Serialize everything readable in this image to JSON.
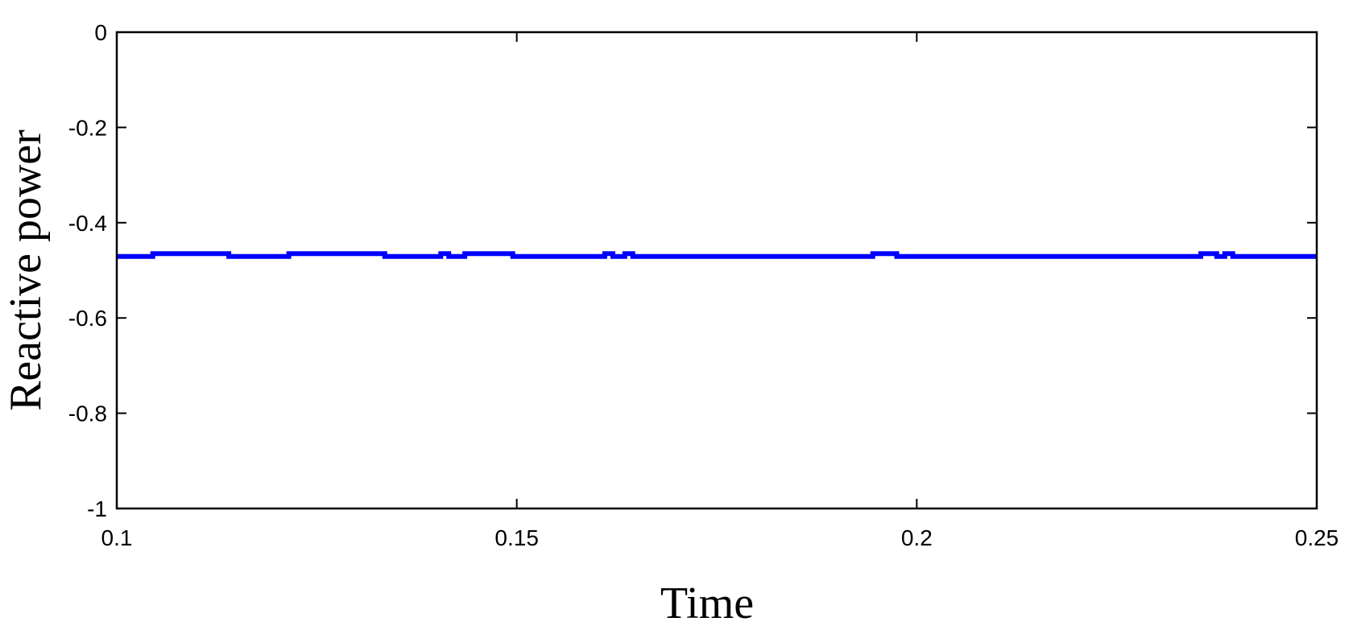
{
  "chart_data": {
    "type": "line",
    "title": "",
    "xlabel": "Time",
    "ylabel": "Reactive power",
    "xlim": [
      0.1,
      0.25
    ],
    "ylim": [
      -1,
      0
    ],
    "xticks": [
      0.1,
      0.15,
      0.2,
      0.25
    ],
    "xtick_labels": [
      "0.1",
      "0.15",
      "0.2",
      "0.25"
    ],
    "yticks": [
      0,
      -0.2,
      -0.4,
      -0.6,
      -0.8,
      -1
    ],
    "ytick_labels": [
      "0",
      "-0.2",
      "-0.4",
      "-0.6",
      "-0.8",
      "-1"
    ],
    "grid": false,
    "line_color": "#0000ff",
    "series": [
      {
        "x": [
          0.1,
          0.1045,
          0.1045,
          0.114,
          0.114,
          0.1215,
          0.1215,
          0.1335,
          0.1335,
          0.1405,
          0.1405,
          0.1415,
          0.1415,
          0.1435,
          0.1435,
          0.1495,
          0.1495,
          0.161,
          0.161,
          0.162,
          0.162,
          0.1635,
          0.1635,
          0.1645,
          0.1645,
          0.1945,
          0.1945,
          0.1975,
          0.1975,
          0.2355,
          0.2355,
          0.2375,
          0.2375,
          0.2385,
          0.2385,
          0.2395,
          0.2395,
          0.25
        ],
        "values": [
          -0.471,
          -0.471,
          -0.465,
          -0.465,
          -0.471,
          -0.471,
          -0.465,
          -0.465,
          -0.471,
          -0.471,
          -0.465,
          -0.465,
          -0.471,
          -0.471,
          -0.465,
          -0.465,
          -0.471,
          -0.471,
          -0.465,
          -0.465,
          -0.471,
          -0.471,
          -0.465,
          -0.465,
          -0.471,
          -0.471,
          -0.465,
          -0.465,
          -0.471,
          -0.471,
          -0.465,
          -0.465,
          -0.471,
          -0.471,
          -0.465,
          -0.465,
          -0.471,
          -0.471
        ]
      }
    ]
  }
}
